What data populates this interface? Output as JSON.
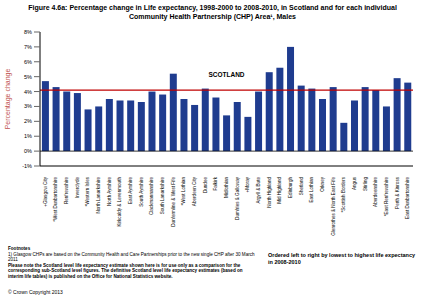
{
  "chart_data": {
    "type": "bar",
    "title": "Figure 4.6a: Percentage change in Life expectancy, 1998-2000 to 2008-2010, in Scotland and for each individual Community Health Partnership (CHP) Area¹, Males",
    "y_label": "Percentage change",
    "categories": [
      "+Glasgow City",
      "*West Dunbartonshire",
      "Renfrewshire",
      "Inverclyde",
      "*Western Isles",
      "North Lanarkshire",
      "North Ayrshire",
      "Kirkcaldy & Levenmouth",
      "East Ayrshire",
      "South Ayrshire",
      "Clackmannanshire",
      "South Lanarkshire",
      "Dunfermline & West Fife",
      "*West Lothian",
      "Aberdeen City",
      "Dundee",
      "Falkirk",
      "Midlothian",
      "Dumfries & Galloway",
      "+Moray",
      "Argyll & Bute",
      "North Highland",
      "Mid Highland",
      "Edinburgh",
      "Shetland",
      "East Lothian",
      "Orkney",
      "Glenrothes & North East Fife",
      "*Scottish Borders",
      "Angus",
      "Stirling",
      "Aberdeenshire",
      "*East Renfrewshire",
      "Perth & Kinross",
      "East Dunbartonshire"
    ],
    "values": [
      4.7,
      4.3,
      4.0,
      3.9,
      2.8,
      3.0,
      3.5,
      3.4,
      3.4,
      3.3,
      4.0,
      3.8,
      5.2,
      3.5,
      3.1,
      4.2,
      3.6,
      2.4,
      3.3,
      2.3,
      4.0,
      5.3,
      5.6,
      7.0,
      4.4,
      4.2,
      3.5,
      4.3,
      1.9,
      3.4,
      4.3,
      4.1,
      3.0,
      4.9,
      4.6
    ],
    "color": "#1f3c8f",
    "ylim": [
      -1,
      8
    ],
    "yticks": [
      {
        "value": -1,
        "label": "-1%"
      },
      {
        "value": 0,
        "label": "0%"
      },
      {
        "value": 1,
        "label": "1%"
      },
      {
        "value": 2,
        "label": "2%"
      },
      {
        "value": 3,
        "label": "3%"
      },
      {
        "value": 4,
        "label": "4%"
      },
      {
        "value": 5,
        "label": "5%"
      },
      {
        "value": 6,
        "label": "6%"
      },
      {
        "value": 7,
        "label": "7%"
      },
      {
        "value": 8,
        "label": "8%"
      }
    ],
    "grid": false,
    "annotations": [
      {
        "label": "SCOTLAND",
        "y": 4.1,
        "color": "#c00000"
      }
    ],
    "footnotes": {
      "heading": "Footnotes",
      "lines": [
        "1) Glasgow CHPs are based on the Community Health and Care Partnerships prior to the new single CHP after 30 March 2011",
        "Please note the Scotland level life expectancy estimate shown here is for use only as a comparison for the corresponding sub-Scotland level figures. The definitive Scotland level life expectancy estimates (based on interim life tables) is published on the Office for National Statistics website."
      ]
    },
    "order_note": "Ordered left to right by lowest to highest life expectancy in 2008-2010",
    "copyright": "© Crown Copyright 2013"
  }
}
